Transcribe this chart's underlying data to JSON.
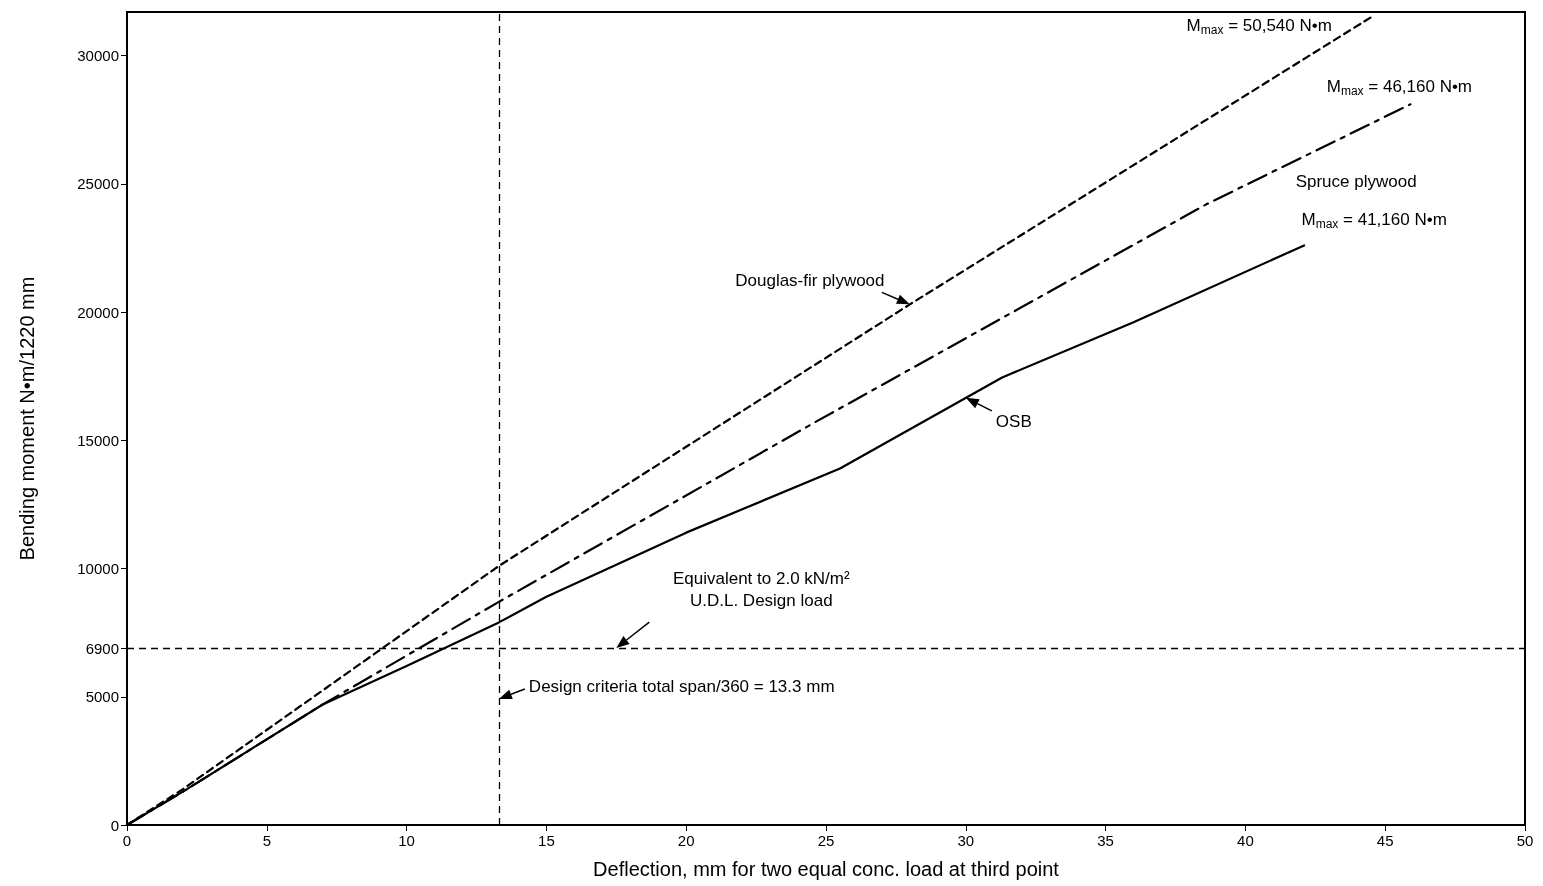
{
  "chart_data": {
    "type": "line",
    "xlabel": "Deflection, mm for two equal conc. load at third point",
    "ylabel": "Bending moment N•m/1220 mm",
    "xlim": [
      0,
      50
    ],
    "xticks": [
      0,
      5,
      10,
      15,
      20,
      25,
      30,
      35,
      40,
      45,
      50
    ],
    "ylim": [
      0,
      31700
    ],
    "yticks": [
      0,
      5000,
      6900,
      10000,
      15000,
      20000,
      25000,
      30000
    ],
    "grid": false,
    "marker": "none",
    "series": [
      {
        "name": "Douglas-fir plywood",
        "color": "#000000",
        "line_style": "dashed",
        "x": [
          0,
          2,
          13.3,
          28,
          44.5
        ],
        "values": [
          0,
          1400,
          10100,
          20300,
          31500
        ]
      },
      {
        "name": "Spruce plywood",
        "color": "#000000",
        "line_style": "dashdot",
        "x": [
          0,
          2,
          7,
          13.3,
          24.6,
          38.6,
          45.9
        ],
        "values": [
          0,
          1300,
          4700,
          8700,
          15700,
          24200,
          28100
        ]
      },
      {
        "name": "OSB",
        "color": "#000000",
        "line_style": "solid",
        "x": [
          0,
          2,
          7,
          10,
          13.3,
          15,
          20,
          25.5,
          31.3,
          36,
          42.1
        ],
        "values": [
          0,
          1300,
          4700,
          6200,
          7900,
          8900,
          11400,
          13900,
          17450,
          19600,
          22600
        ]
      }
    ],
    "ref_lines": [
      {
        "axis": "y",
        "value": 6900,
        "label": "Equivalent to 2.0 kN/m²\nU.D.L. Design load",
        "line_style": "dashed",
        "color": "#000000"
      },
      {
        "axis": "x",
        "value": 13.3,
        "label": "Design criteria total span/360 = 13.3 mm",
        "line_style": "dashed",
        "color": "#000000"
      }
    ],
    "annotations": [
      {
        "text": "M$_{max}$ = 50,540 N•m",
        "x": 44.5,
        "y": 31500
      },
      {
        "text": "M$_{max}$ = 46,160 N•m",
        "x": 45.9,
        "y": 28100
      },
      {
        "text": "M$_{max}$ = 41,160 N•m",
        "x": 42.1,
        "y": 22600
      }
    ]
  }
}
